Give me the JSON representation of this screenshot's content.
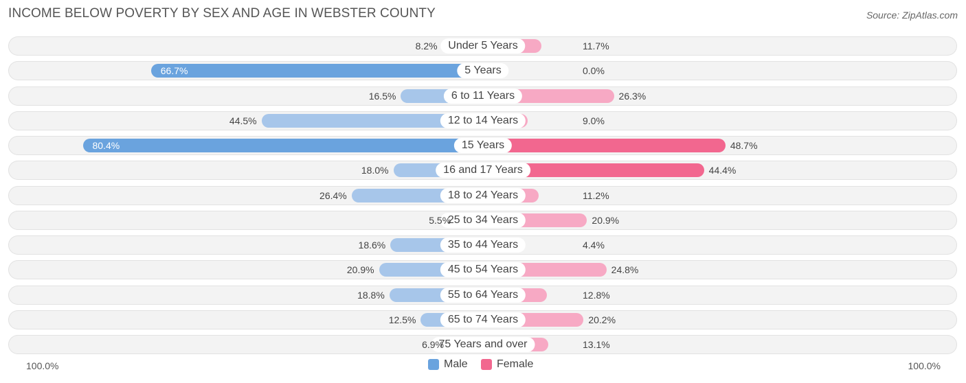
{
  "title": "INCOME BELOW POVERTY BY SEX AND AGE IN WEBSTER COUNTY",
  "source": "Source: ZipAtlas.com",
  "axis": {
    "left_label": "100.0%",
    "right_label": "100.0%"
  },
  "legend": {
    "male_label": "Male",
    "female_label": "Female"
  },
  "colors": {
    "male": "#a7c6ea",
    "male_strong": "#6aa3de",
    "female": "#f7a9c4",
    "female_strong": "#f2678f",
    "row_bg": "#f3f3f3"
  },
  "chart_data": {
    "type": "bar",
    "orientation": "horizontal-diverging",
    "categories": [
      "Under 5 Years",
      "5 Years",
      "6 to 11 Years",
      "12 to 14 Years",
      "15 Years",
      "16 and 17 Years",
      "18 to 24 Years",
      "25 to 34 Years",
      "35 to 44 Years",
      "45 to 54 Years",
      "55 to 64 Years",
      "65 to 74 Years",
      "75 Years and over"
    ],
    "series": [
      {
        "name": "Male",
        "values": [
          8.2,
          66.7,
          16.5,
          44.5,
          80.4,
          18.0,
          26.4,
          5.5,
          18.6,
          20.9,
          18.8,
          12.5,
          6.9
        ],
        "labels": [
          "8.2%",
          "66.7%",
          "16.5%",
          "44.5%",
          "80.4%",
          "18.0%",
          "26.4%",
          "5.5%",
          "18.6%",
          "20.9%",
          "18.8%",
          "12.5%",
          "6.9%"
        ]
      },
      {
        "name": "Female",
        "values": [
          11.7,
          0.0,
          26.3,
          9.0,
          48.7,
          44.4,
          11.2,
          20.9,
          4.4,
          24.8,
          12.8,
          20.2,
          13.1
        ],
        "labels": [
          "11.7%",
          "0.0%",
          "26.3%",
          "9.0%",
          "48.7%",
          "44.4%",
          "11.2%",
          "20.9%",
          "4.4%",
          "24.8%",
          "12.8%",
          "20.2%",
          "13.1%"
        ]
      }
    ],
    "xlim": [
      -100,
      100
    ],
    "legend_position": "bottom-center",
    "grid": false
  }
}
